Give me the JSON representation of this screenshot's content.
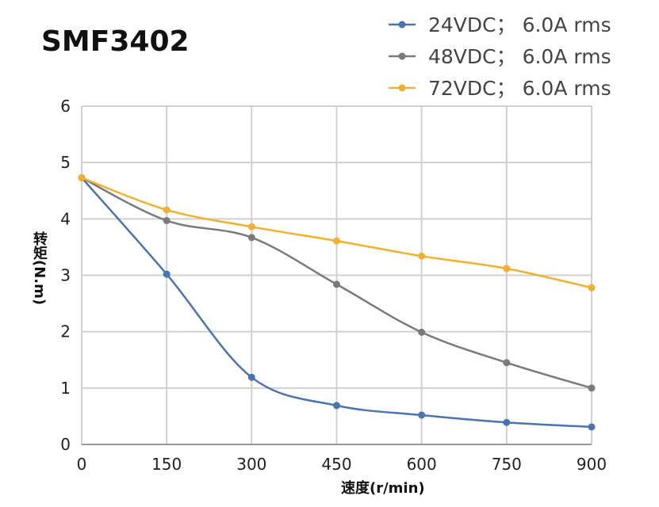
{
  "chart_data": {
    "type": "line",
    "title": "SMF3402",
    "xlabel": "速度(r/min)",
    "ylabel": "转矩(N.m)",
    "xlim": [
      0,
      900
    ],
    "ylim": [
      0,
      6
    ],
    "xticks": [
      0,
      150,
      300,
      450,
      600,
      750,
      900
    ],
    "yticks": [
      0,
      1,
      2,
      3,
      4,
      5,
      6
    ],
    "grid": true,
    "legend_position": "top-right",
    "x": [
      0,
      150,
      300,
      450,
      600,
      750,
      900
    ],
    "series": [
      {
        "name": "24VDC；  6.0A rms",
        "color": "#4a74b0",
        "values": [
          4.73,
          3.02,
          1.19,
          0.69,
          0.52,
          0.39,
          0.31
        ]
      },
      {
        "name": "48VDC；  6.0A rms",
        "color": "#7a7a7a",
        "values": [
          4.73,
          3.97,
          3.67,
          2.84,
          1.99,
          1.45,
          1.0
        ]
      },
      {
        "name": "72VDC；  6.0A rms",
        "color": "#f0b030",
        "values": [
          4.73,
          4.16,
          3.86,
          3.61,
          3.34,
          3.12,
          2.78
        ]
      }
    ]
  }
}
